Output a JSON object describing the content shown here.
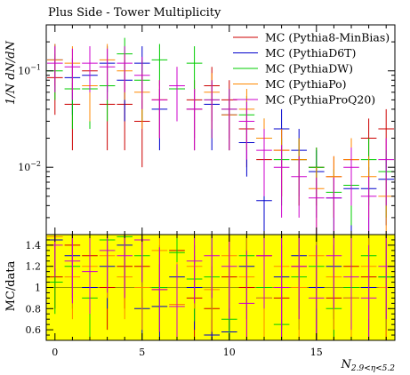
{
  "chart_data": [
    {
      "panel": "main",
      "type": "scatter",
      "title": "Plus Side - Tower Multiplicity",
      "ylabel": "1/N dN/dN",
      "yscale": "log",
      "xlim": [
        -0.5,
        19.5
      ],
      "ylim": [
        0.002,
        0.3
      ],
      "yticks": [
        {
          "value": 0.01,
          "base": "10",
          "exp": "−2"
        },
        {
          "value": 0.1,
          "base": "10",
          "exp": "−1"
        }
      ],
      "legend_position": "top-right",
      "series": [
        {
          "name": "MC (Pythia8-MinBias)",
          "color": "#cc0000",
          "x": [
            0,
            1,
            2,
            3,
            4,
            5,
            6,
            7,
            8,
            9,
            10,
            11,
            12,
            13,
            14,
            15,
            16,
            17,
            18,
            19
          ],
          "y": [
            0.085,
            0.045,
            0.1,
            0.045,
            0.045,
            0.03,
            0.05,
            0.065,
            0.05,
            0.07,
            0.05,
            0.025,
            0.012,
            0.015,
            0.012,
            0.01,
            0.008,
            0.012,
            0.02,
            0.025
          ],
          "err": [
            0.05,
            0.03,
            0.05,
            0.03,
            0.03,
            0.02,
            0.03,
            0.035,
            0.03,
            0.04,
            0.03,
            0.015,
            0.008,
            0.01,
            0.008,
            0.006,
            0.005,
            0.008,
            0.012,
            0.015
          ]
        },
        {
          "name": "MC (PythiaD6T)",
          "color": "#0000cc",
          "x": [
            0,
            1,
            2,
            3,
            4,
            5,
            6,
            7,
            8,
            9,
            10,
            11,
            12,
            13,
            14,
            15,
            16,
            17,
            18,
            19
          ],
          "y": [
            0.13,
            0.085,
            0.09,
            0.12,
            0.08,
            0.12,
            0.04,
            0.065,
            0.04,
            0.045,
            0.035,
            0.018,
            0.0045,
            0.025,
            0.015,
            0.009,
            0.0048,
            0.006,
            0.006,
            0.0075
          ],
          "err": [
            0.06,
            0.05,
            0.05,
            0.06,
            0.05,
            0.06,
            0.025,
            0.035,
            0.025,
            0.03,
            0.02,
            0.01,
            0.003,
            0.015,
            0.01,
            0.006,
            0.003,
            0.004,
            0.004,
            0.005
          ]
        },
        {
          "name": "MC (PythiaDW)",
          "color": "#00cc00",
          "x": [
            0,
            1,
            2,
            3,
            4,
            5,
            6,
            7,
            8,
            9,
            10,
            11,
            12,
            13,
            14,
            15,
            16,
            17,
            18,
            19
          ],
          "y": [
            0.1,
            0.065,
            0.065,
            0.07,
            0.15,
            0.08,
            0.13,
            0.065,
            0.12,
            0.05,
            0.04,
            0.035,
            0.02,
            0.012,
            0.012,
            0.01,
            0.0055,
            0.0065,
            0.012,
            0.009
          ],
          "err": [
            0.05,
            0.04,
            0.04,
            0.04,
            0.07,
            0.05,
            0.06,
            0.035,
            0.06,
            0.03,
            0.025,
            0.02,
            0.012,
            0.008,
            0.008,
            0.006,
            0.004,
            0.004,
            0.008,
            0.006
          ]
        },
        {
          "name": "MC (PythiaPo)",
          "color": "#ff8800",
          "x": [
            0,
            1,
            2,
            3,
            4,
            5,
            6,
            7,
            8,
            9,
            10,
            11,
            12,
            13,
            14,
            15,
            16,
            17,
            18,
            19
          ],
          "y": [
            0.13,
            0.12,
            0.07,
            0.13,
            0.1,
            0.06,
            0.05,
            0.07,
            0.04,
            0.06,
            0.035,
            0.04,
            0.02,
            0.015,
            0.012,
            0.006,
            0.008,
            0.012,
            0.008,
            0.005
          ],
          "err": [
            0.06,
            0.06,
            0.04,
            0.06,
            0.05,
            0.035,
            0.03,
            0.04,
            0.025,
            0.035,
            0.02,
            0.025,
            0.012,
            0.01,
            0.008,
            0.004,
            0.005,
            0.008,
            0.005,
            0.003
          ]
        },
        {
          "name": "MC (PythiaProQ20)",
          "color": "#cc00cc",
          "x": [
            0,
            1,
            2,
            3,
            4,
            5,
            6,
            7,
            8,
            9,
            10,
            11,
            12,
            13,
            14,
            15,
            16,
            17,
            18,
            19
          ],
          "y": [
            0.12,
            0.11,
            0.12,
            0.11,
            0.12,
            0.09,
            0.05,
            0.07,
            0.04,
            0.05,
            0.04,
            0.03,
            0.015,
            0.01,
            0.008,
            0.0048,
            0.0048,
            0.01,
            0.005,
            0.012
          ],
          "err": [
            0.06,
            0.06,
            0.06,
            0.06,
            0.06,
            0.05,
            0.03,
            0.04,
            0.025,
            0.03,
            0.025,
            0.018,
            0.01,
            0.007,
            0.005,
            0.003,
            0.003,
            0.006,
            0.003,
            0.008
          ]
        }
      ]
    },
    {
      "panel": "ratio",
      "type": "scatter",
      "ylabel": "MC/data",
      "xlabel": "N",
      "xlabel_sub": "2.9<η<5.2",
      "xlim": [
        -0.5,
        19.5
      ],
      "ylim": [
        0.5,
        1.5
      ],
      "xticks": [
        0,
        5,
        10,
        15
      ],
      "xtick_labels": [
        "0",
        "5",
        "10",
        "15"
      ],
      "yticks": [
        0.6,
        0.8,
        1,
        1.2,
        1.4
      ],
      "ytick_labels": [
        "0.6",
        "0.8",
        "1",
        "1.2",
        "1.4"
      ],
      "reference_line": 1,
      "band_color": "#ffff00",
      "series": [
        {
          "name": "MC (Pythia8-MinBias)",
          "color": "#cc0000",
          "x": [
            0,
            1,
            2,
            3,
            4,
            5,
            6,
            7,
            8,
            9,
            10,
            11,
            12,
            13,
            14,
            15,
            16,
            17,
            18,
            19
          ],
          "y": [
            1.1,
            1.4,
            1.3,
            1.0,
            1.2,
            1.2,
            0.98,
            1.35,
            0.9,
            0.8,
            1.1,
            1.0,
            1.3,
            0.9,
            1.2,
            1.0,
            0.9,
            1.2,
            1.1,
            1.0
          ],
          "err": [
            0.3,
            0.4,
            0.4,
            0.4,
            0.4,
            0.4,
            0.4,
            0.4,
            0.4,
            0.4,
            0.5,
            0.5,
            0.5,
            0.5,
            0.5,
            0.5,
            0.5,
            0.5,
            0.5,
            0.5
          ]
        },
        {
          "name": "MC (PythiaD6T)",
          "color": "#0000cc",
          "x": [
            0,
            1,
            2,
            3,
            4,
            5,
            6,
            7,
            8,
            9,
            10,
            11,
            12,
            13,
            14,
            15,
            16,
            17,
            18,
            19
          ],
          "y": [
            1.45,
            1.3,
            1.0,
            1.2,
            1.4,
            0.8,
            0.82,
            1.1,
            1.0,
            0.55,
            0.58,
            1.2,
            0.9,
            1.1,
            1.3,
            1.0,
            1.2,
            0.9,
            1.0,
            1.1
          ],
          "err": [
            0.3,
            0.4,
            0.4,
            0.4,
            0.4,
            0.4,
            0.4,
            0.4,
            0.4,
            0.4,
            0.5,
            0.5,
            0.5,
            0.5,
            0.5,
            0.5,
            0.5,
            0.5,
            0.5,
            0.5
          ]
        },
        {
          "name": "MC (PythiaDW)",
          "color": "#00cc00",
          "x": [
            0,
            1,
            2,
            3,
            4,
            5,
            6,
            7,
            8,
            9,
            10,
            11,
            12,
            13,
            14,
            15,
            16,
            17,
            18,
            19
          ],
          "y": [
            1.05,
            1.2,
            0.9,
            1.45,
            1.48,
            1.3,
            1.0,
            1.33,
            1.08,
            1.1,
            0.7,
            1.3,
            1.0,
            0.65,
            1.1,
            1.2,
            0.8,
            1.0,
            1.3,
            1.1
          ],
          "err": [
            0.3,
            0.4,
            0.4,
            0.4,
            0.4,
            0.4,
            0.4,
            0.4,
            0.4,
            0.4,
            0.5,
            0.5,
            0.5,
            0.5,
            0.5,
            0.5,
            0.5,
            0.5,
            0.5,
            0.5
          ]
        },
        {
          "name": "MC (PythiaPo)",
          "color": "#ff8800",
          "x": [
            0,
            1,
            2,
            3,
            4,
            5,
            6,
            7,
            8,
            9,
            10,
            11,
            12,
            13,
            14,
            15,
            16,
            17,
            18,
            19
          ],
          "y": [
            1.48,
            1.1,
            1.2,
            1.3,
            1.1,
            1.0,
            1.35,
            0.84,
            1.2,
            0.98,
            1.3,
            1.1,
            0.9,
            1.2,
            1.0,
            1.3,
            1.1,
            0.9,
            1.2,
            1.0
          ],
          "err": [
            0.3,
            0.4,
            0.4,
            0.4,
            0.4,
            0.4,
            0.4,
            0.4,
            0.4,
            0.4,
            0.5,
            0.5,
            0.5,
            0.5,
            0.5,
            0.5,
            0.5,
            0.5,
            0.5,
            0.5
          ]
        },
        {
          "name": "MC (PythiaProQ20)",
          "color": "#cc00cc",
          "x": [
            0,
            1,
            2,
            3,
            4,
            5,
            6,
            7,
            8,
            9,
            10,
            11,
            12,
            13,
            14,
            15,
            16,
            17,
            18,
            19
          ],
          "y": [
            1.4,
            1.25,
            1.15,
            1.35,
            1.3,
            1.45,
            0.98,
            0.82,
            1.25,
            1.3,
            1.2,
            0.85,
            1.3,
            1.0,
            1.2,
            0.9,
            1.3,
            1.1,
            0.9,
            1.2
          ],
          "err": [
            0.3,
            0.4,
            0.4,
            0.4,
            0.4,
            0.4,
            0.4,
            0.4,
            0.4,
            0.4,
            0.5,
            0.5,
            0.5,
            0.5,
            0.5,
            0.5,
            0.5,
            0.5,
            0.5,
            0.5
          ]
        }
      ]
    }
  ]
}
